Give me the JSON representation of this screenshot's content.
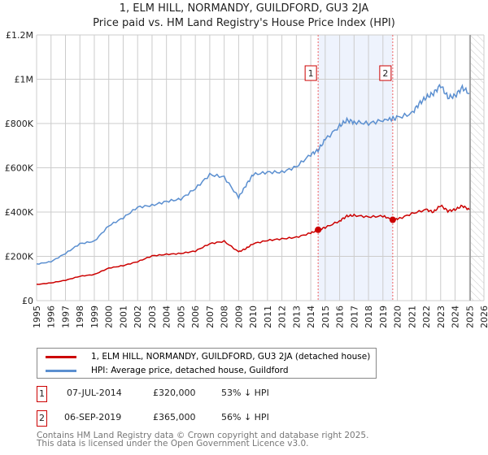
{
  "title": "1, ELM HILL, NORMANDY, GUILDFORD, GU3 2JA",
  "subtitle": "Price paid vs. HM Land Registry's House Price Index (HPI)",
  "chart_data": {
    "type": "line",
    "xlim": [
      1995,
      2026
    ],
    "ylim": [
      0,
      1200000
    ],
    "x_ticks": [
      "1995",
      "1996",
      "1997",
      "1998",
      "1999",
      "2000",
      "2001",
      "2002",
      "2003",
      "2004",
      "2005",
      "2006",
      "2007",
      "2008",
      "2009",
      "2010",
      "2011",
      "2012",
      "2013",
      "2014",
      "2015",
      "2016",
      "2017",
      "2018",
      "2019",
      "2020",
      "2021",
      "2022",
      "2023",
      "2024",
      "2025",
      "2026"
    ],
    "y_ticks": [
      {
        "value": 0,
        "label": "£0"
      },
      {
        "value": 200000,
        "label": "£200K"
      },
      {
        "value": 400000,
        "label": "£400K"
      },
      {
        "value": 600000,
        "label": "£600K"
      },
      {
        "value": 800000,
        "label": "£800K"
      },
      {
        "value": 1000000,
        "label": "£1M"
      },
      {
        "value": 1200000,
        "label": "£1.2M"
      }
    ],
    "grid": true,
    "series": [
      {
        "name": "1, ELM HILL, NORMANDY, GUILDFORD, GU3 2JA (detached house)",
        "color": "#cc0000",
        "x": [
          1995,
          1996,
          1997,
          1998,
          1999,
          2000,
          2001,
          2002,
          2003,
          2004,
          2005,
          2006,
          2007,
          2008,
          2009,
          2009.5,
          2010,
          2011,
          2012,
          2013,
          2014,
          2014.51,
          2015,
          2016,
          2016.5,
          2017,
          2018,
          2019,
          2019.68,
          2020,
          2021,
          2022,
          2022.5,
          2023,
          2023.5,
          2024,
          2024.5,
          2025
        ],
        "y": [
          73000,
          80000,
          92000,
          110000,
          118000,
          147000,
          158000,
          176000,
          202000,
          209000,
          213000,
          224000,
          257000,
          268000,
          220000,
          235000,
          257000,
          272000,
          279000,
          286000,
          305000,
          320000,
          330000,
          360000,
          382000,
          385000,
          378000,
          382000,
          365000,
          367000,
          393000,
          411000,
          400000,
          430000,
          405000,
          411000,
          428000,
          411000
        ]
      },
      {
        "name": "HPI: Average price, detached house, Guildford",
        "color": "#5b8fd0",
        "x": [
          1995,
          1996,
          1997,
          1998,
          1999,
          2000,
          2001,
          2002,
          2003,
          2004,
          2005,
          2006,
          2007,
          2008,
          2009,
          2009.5,
          2010,
          2011,
          2012,
          2013,
          2014,
          2014.5,
          2015,
          2016,
          2016.5,
          2017,
          2018,
          2019,
          2019.7,
          2020,
          2021,
          2021.5,
          2022,
          2022.5,
          2023,
          2023.5,
          2024,
          2024.5,
          2025
        ],
        "y": [
          165000,
          176000,
          213000,
          257000,
          268000,
          338000,
          374000,
          422000,
          430000,
          448000,
          459000,
          506000,
          569000,
          558000,
          466000,
          520000,
          569000,
          580000,
          580000,
          605000,
          660000,
          679000,
          727000,
          789000,
          815000,
          807000,
          800000,
          815000,
          822000,
          826000,
          845000,
          889000,
          918000,
          936000,
          973000,
          918000,
          925000,
          962000,
          936000
        ]
      }
    ],
    "sales": [
      {
        "id": "1",
        "x": 2014.51,
        "y": 320000,
        "date": "07-JUL-2014",
        "price": "£320,000",
        "hpi": "53% ↓ HPI"
      },
      {
        "id": "2",
        "x": 2019.68,
        "y": 365000,
        "date": "06-SEP-2019",
        "price": "£365,000",
        "hpi": "56% ↓ HPI"
      }
    ],
    "forecast_start": 2025.05,
    "legend_placement": "below"
  },
  "footer": [
    "Contains HM Land Registry data © Crown copyright and database right 2025.",
    "This data is licensed under the Open Government Licence v3.0."
  ]
}
